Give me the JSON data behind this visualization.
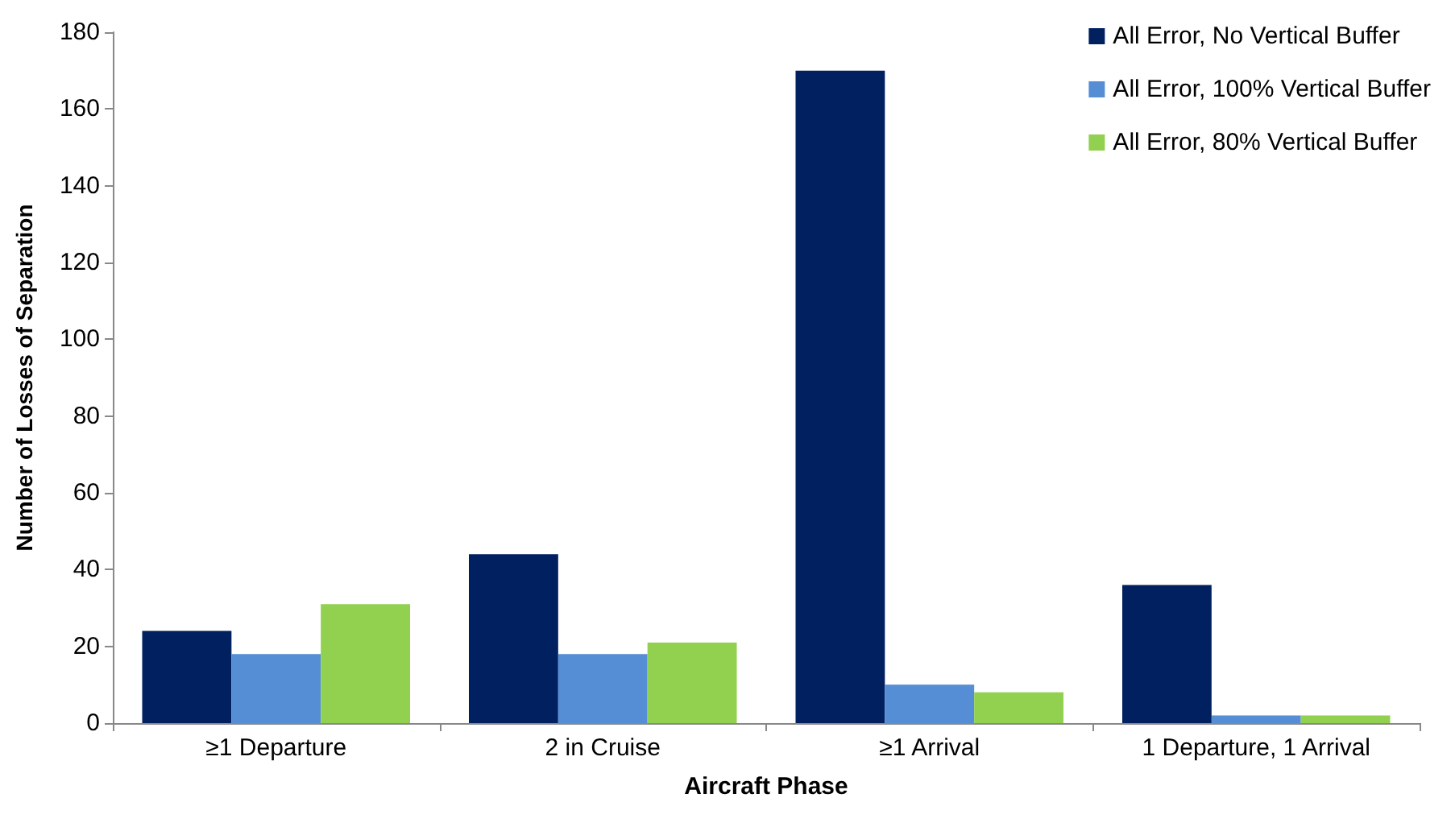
{
  "chart_data": {
    "type": "bar",
    "xlabel": "Aircraft Phase",
    "ylabel": "Number of Losses of Separation",
    "categories": [
      "≥1 Departure",
      "2 in Cruise",
      "≥1 Arrival",
      "1 Departure, 1 Arrival"
    ],
    "series": [
      {
        "name": "All Error, No Vertical Buffer",
        "color": "#002060",
        "values": [
          24,
          44,
          170,
          36
        ]
      },
      {
        "name": "All Error, 100% Vertical Buffer",
        "color": "#558ed5",
        "values": [
          18,
          18,
          10,
          2
        ]
      },
      {
        "name": "All Error, 80% Vertical Buffer",
        "color": "#92d050",
        "values": [
          31,
          21,
          8,
          2
        ]
      }
    ],
    "ylim": [
      0,
      180
    ],
    "yticks": [
      0,
      20,
      40,
      60,
      80,
      100,
      120,
      140,
      160,
      180
    ],
    "grid": false,
    "legend": "top right"
  }
}
